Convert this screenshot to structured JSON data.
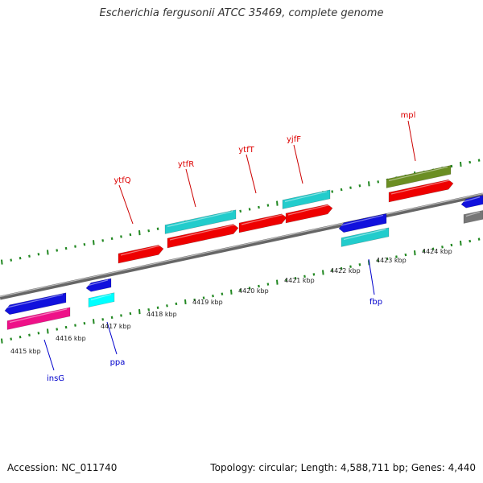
{
  "title": "Escherichia fergusonii ATCC 35469, complete genome",
  "footer": {
    "accession": "Accession: NC_011740",
    "summary": "Topology: circular; Length: 4,588,711 bp; Genes: 4,440"
  },
  "colors": {
    "forward_gene": "#ee0000",
    "reverse_gene": "#1111dd",
    "cyan_feature": "#22cccc",
    "olive_feature": "#6b8e23",
    "magenta_feature": "#ee1188",
    "bright_cyan_feature": "#00ffff",
    "backbone": "#888888",
    "ticks": "#228822"
  },
  "scale": {
    "labels": [
      "4415 kbp",
      "4416 kbp",
      "4417 kbp",
      "4418 kbp",
      "4419 kbp",
      "4420 kbp",
      "4421 kbp",
      "4422 kbp",
      "4423 kbp",
      "4424 kbp"
    ]
  },
  "genes": {
    "upper": [
      {
        "name": "ytfQ",
        "color": "#dd0000"
      },
      {
        "name": "ytfR",
        "color": "#dd0000"
      },
      {
        "name": "ytfT",
        "color": "#dd0000"
      },
      {
        "name": "yjfF",
        "color": "#dd0000"
      },
      {
        "name": "mpl",
        "color": "#dd0000"
      }
    ],
    "lower": [
      {
        "name": "insG",
        "color": "#0000cc"
      },
      {
        "name": "ppa",
        "color": "#0000cc"
      },
      {
        "name": "fbp",
        "color": "#0000cc"
      }
    ]
  }
}
